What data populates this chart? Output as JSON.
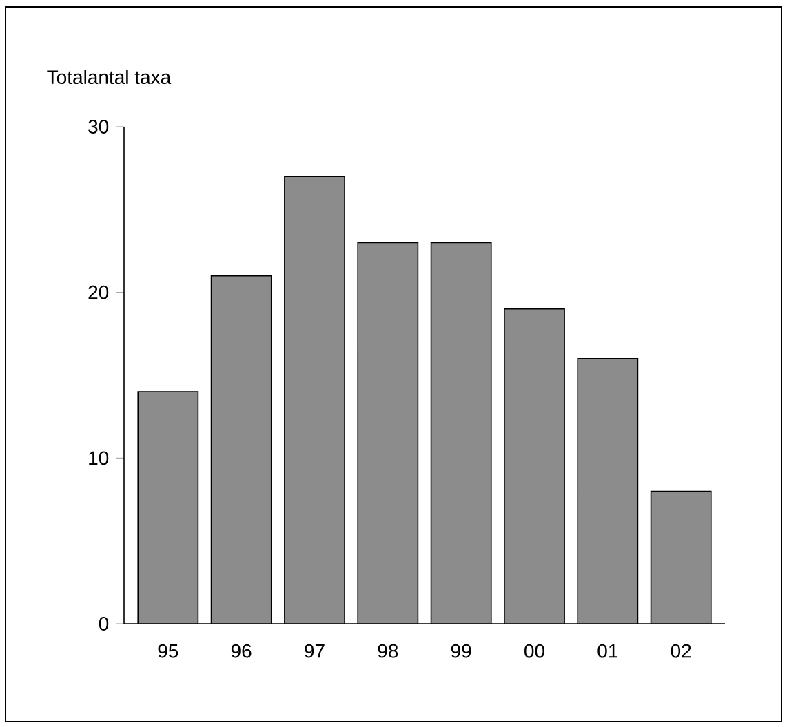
{
  "chart_data": {
    "type": "bar",
    "ylabel": "Totalantal taxa",
    "categories": [
      "95",
      "96",
      "97",
      "98",
      "99",
      "00",
      "01",
      "02"
    ],
    "values": [
      14,
      21,
      27,
      23,
      23,
      19,
      16,
      8
    ],
    "color": "#8c8c8c",
    "ylim": [
      0,
      30
    ],
    "yticks": [
      0,
      10,
      20,
      30
    ],
    "grid": false
  }
}
